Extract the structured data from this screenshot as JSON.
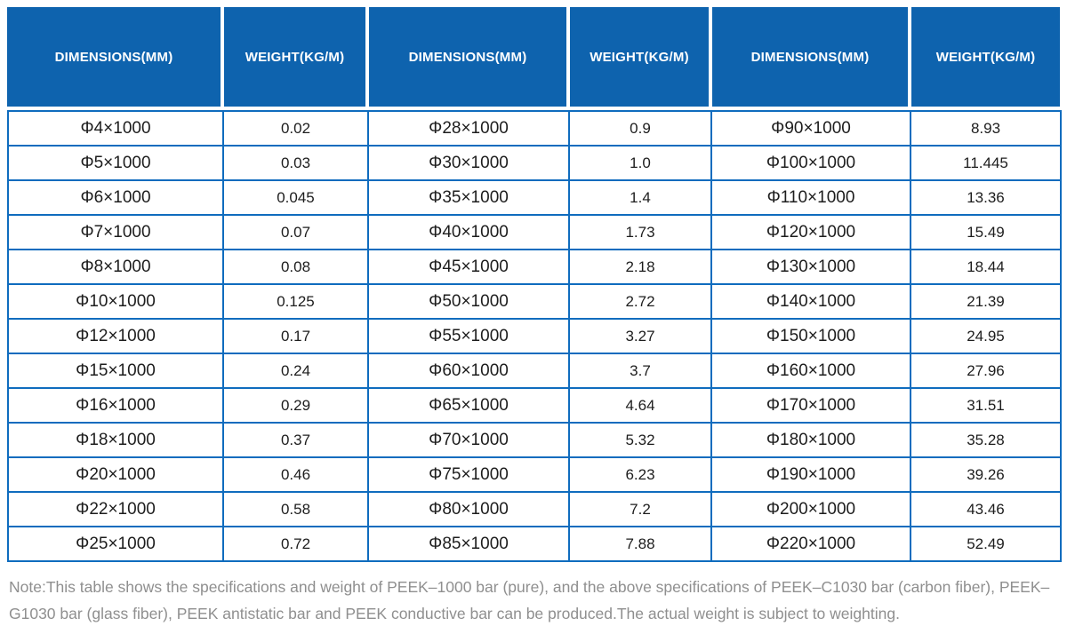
{
  "table": {
    "headers": [
      "DIMENSIONS(MM)",
      "WEIGHT(KG/M)",
      "DIMENSIONS(MM)",
      "WEIGHT(KG/M)",
      "DIMENSIONS(MM)",
      "WEIGHT(KG/M)"
    ],
    "rows": [
      [
        "Φ4×1000",
        "0.02",
        "Φ28×1000",
        "0.9",
        "Φ90×1000",
        "8.93"
      ],
      [
        "Φ5×1000",
        "0.03",
        "Φ30×1000",
        "1.0",
        "Φ100×1000",
        "11.445"
      ],
      [
        "Φ6×1000",
        "0.045",
        "Φ35×1000",
        "1.4",
        "Φ110×1000",
        "13.36"
      ],
      [
        "Φ7×1000",
        "0.07",
        "Φ40×1000",
        "1.73",
        "Φ120×1000",
        "15.49"
      ],
      [
        "Φ8×1000",
        "0.08",
        "Φ45×1000",
        "2.18",
        "Φ130×1000",
        "18.44"
      ],
      [
        "Φ10×1000",
        "0.125",
        "Φ50×1000",
        "2.72",
        "Φ140×1000",
        "21.39"
      ],
      [
        "Φ12×1000",
        "0.17",
        "Φ55×1000",
        "3.27",
        "Φ150×1000",
        "24.95"
      ],
      [
        "Φ15×1000",
        "0.24",
        "Φ60×1000",
        "3.7",
        "Φ160×1000",
        "27.96"
      ],
      [
        "Φ16×1000",
        "0.29",
        "Φ65×1000",
        "4.64",
        "Φ170×1000",
        "31.51"
      ],
      [
        "Φ18×1000",
        "0.37",
        "Φ70×1000",
        "5.32",
        "Φ180×1000",
        "35.28"
      ],
      [
        "Φ20×1000",
        "0.46",
        "Φ75×1000",
        "6.23",
        "Φ190×1000",
        "39.26"
      ],
      [
        "Φ22×1000",
        "0.58",
        "Φ80×1000",
        "7.2",
        "Φ200×1000",
        "43.46"
      ],
      [
        "Φ25×1000",
        "0.72",
        "Φ85×1000",
        "7.88",
        "Φ220×1000",
        "52.49"
      ]
    ]
  },
  "note": "Note:This table shows the specifications and weight of PEEK–1000 bar (pure), and the above specifications of PEEK–C1030 bar (carbon fiber), PEEK–G1030 bar (glass fiber), PEEK antistatic bar and PEEK conductive bar can be produced.The actual weight is subject to weighting.",
  "colors": {
    "header_bg": "#0e63ae",
    "border_blue": "#0f6cbe",
    "header_text": "#ffffff",
    "cell_text": "#1d1d1d",
    "note_text": "#8f8f8f"
  }
}
